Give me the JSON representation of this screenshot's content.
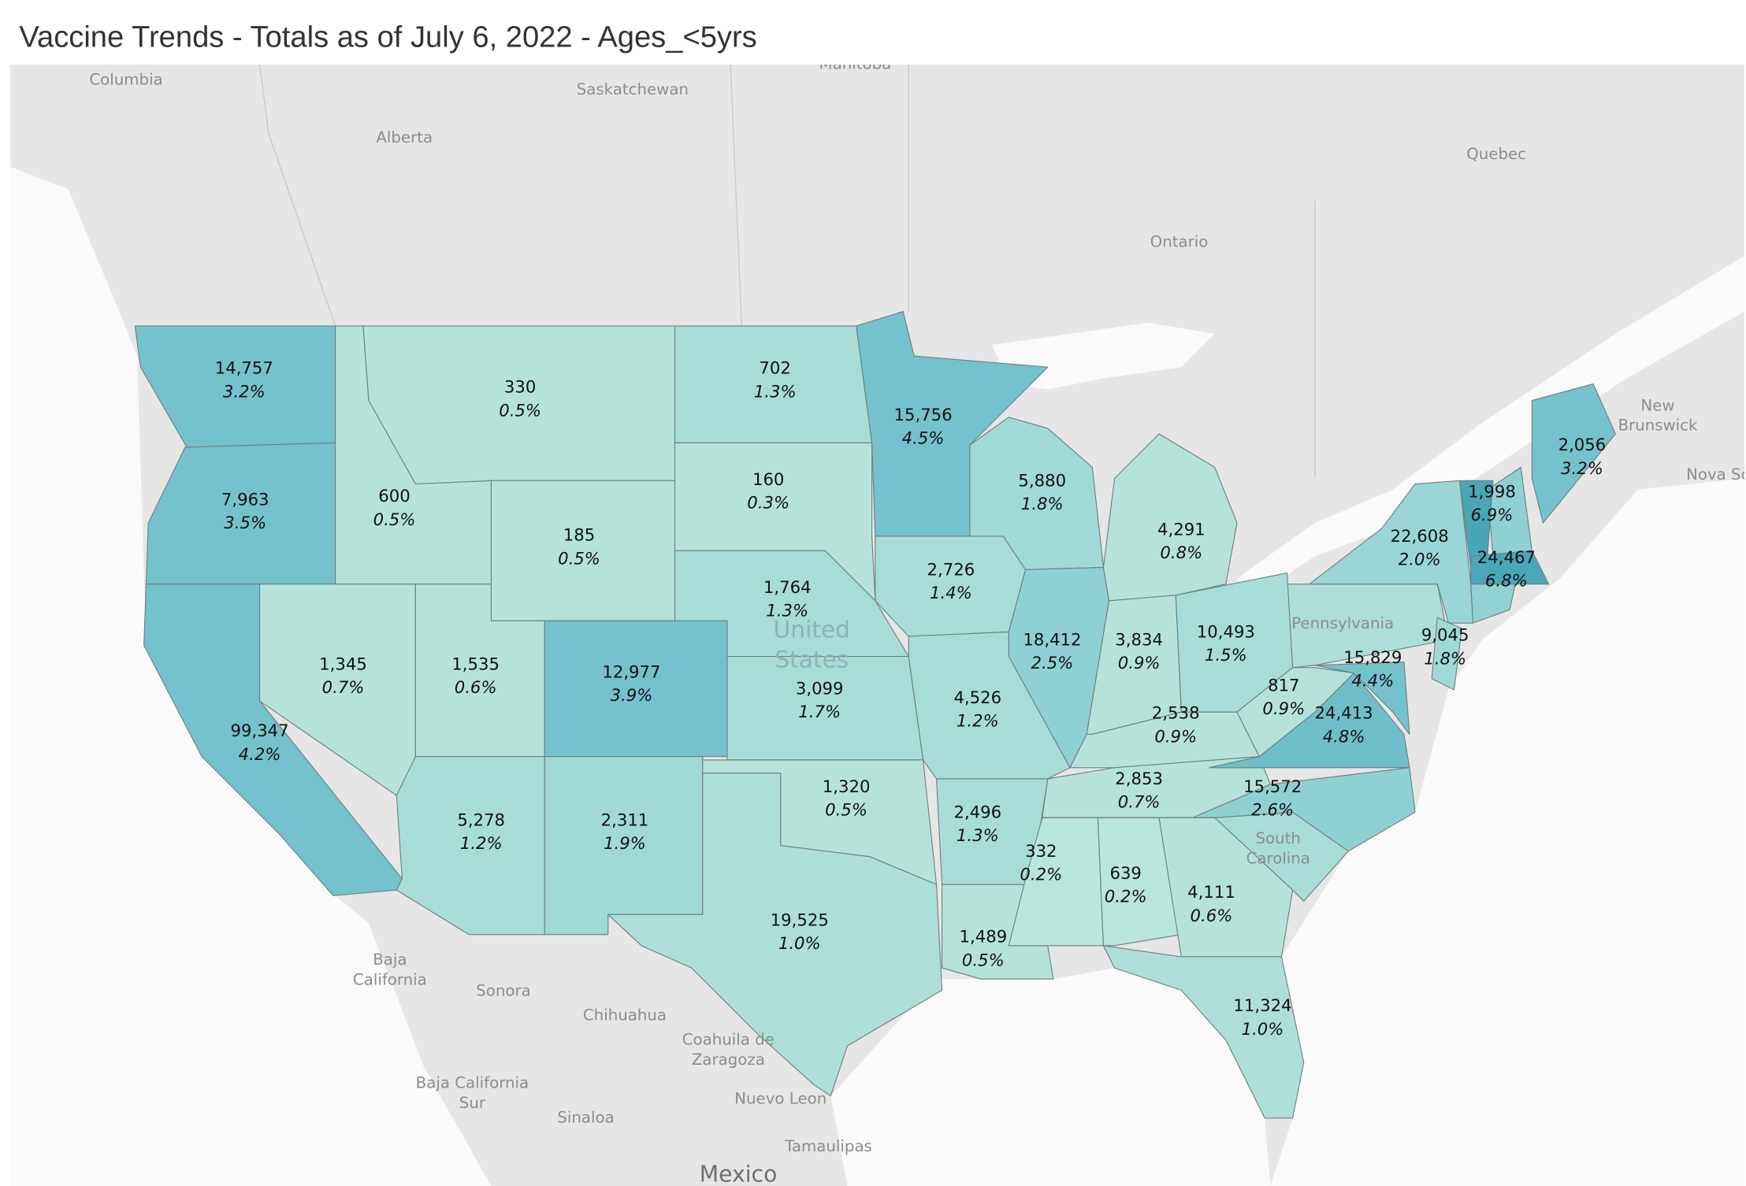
{
  "map": {
    "title": "Vaccine Trends - Totals as of July 6, 2022 - Ages_<5yrs",
    "regions": [
      {
        "count": "14,757",
        "pct": "3.2%",
        "color": "#74c2cd"
      },
      {
        "count": "7,963",
        "pct": "3.5%",
        "color": "#74c2cd"
      },
      {
        "count": "99,347",
        "pct": "4.2%",
        "color": "#74c2cd"
      },
      {
        "count": "600",
        "pct": "0.5%",
        "color": "#b5e3da"
      },
      {
        "count": "330",
        "pct": "0.5%",
        "color": "#b5e3da"
      },
      {
        "count": "185",
        "pct": "0.5%",
        "color": "#b5e3da"
      },
      {
        "count": "1,345",
        "pct": "0.7%",
        "color": "#b5e3da"
      },
      {
        "count": "1,535",
        "pct": "0.6%",
        "color": "#b5e3da"
      },
      {
        "count": "12,977",
        "pct": "3.9%",
        "color": "#74c2cd"
      },
      {
        "count": "5,278",
        "pct": "1.2%",
        "color": "#a8ddd7"
      },
      {
        "count": "2,311",
        "pct": "1.9%",
        "color": "#a0d9d6"
      },
      {
        "count": "702",
        "pct": "1.3%",
        "color": "#a8ddd7"
      },
      {
        "count": "160",
        "pct": "0.3%",
        "color": "#b5e3da"
      },
      {
        "count": "1,764",
        "pct": "1.3%",
        "color": "#a8ddd7"
      },
      {
        "count": "3,099",
        "pct": "1.7%",
        "color": "#a8ddd7"
      },
      {
        "count": "1,320",
        "pct": "0.5%",
        "color": "#b5e3da"
      },
      {
        "count": "19,525",
        "pct": "1.0%",
        "color": "#addfd8"
      },
      {
        "count": "15,756",
        "pct": "4.5%",
        "color": "#74c2cd"
      },
      {
        "count": "2,726",
        "pct": "1.4%",
        "color": "#a8ddd7"
      },
      {
        "count": "4,526",
        "pct": "1.2%",
        "color": "#a8ddd7"
      },
      {
        "count": "2,496",
        "pct": "1.3%",
        "color": "#a8ddd7"
      },
      {
        "count": "1,489",
        "pct": "0.5%",
        "color": "#b5e3da"
      },
      {
        "count": "5,880",
        "pct": "1.8%",
        "color": "#a0d9d6"
      },
      {
        "count": "18,412",
        "pct": "2.5%",
        "color": "#8fd0d3"
      },
      {
        "count": "4,291",
        "pct": "0.8%",
        "color": "#b5e3da"
      },
      {
        "count": "3,834",
        "pct": "0.9%",
        "color": "#b5e3da"
      },
      {
        "count": "10,493",
        "pct": "1.5%",
        "color": "#a8ddd7"
      },
      {
        "count": "2,538",
        "pct": "0.9%",
        "color": "#b5e3da"
      },
      {
        "count": "2,853",
        "pct": "0.7%",
        "color": "#b5e3da"
      },
      {
        "count": "332",
        "pct": "0.2%",
        "color": "#b8e5dc"
      },
      {
        "count": "639",
        "pct": "0.2%",
        "color": "#b8e5dc"
      },
      {
        "count": "4,111",
        "pct": "0.6%",
        "color": "#b5e3da"
      },
      {
        "count": "11,324",
        "pct": "1.0%",
        "color": "#addfd8"
      },
      {
        "count": "15,572",
        "pct": "2.6%",
        "color": "#8fd0d3"
      },
      {
        "count": "24,413",
        "pct": "4.8%",
        "color": "#6fbfcb"
      },
      {
        "count": "817",
        "pct": "0.9%",
        "color": "#b5e3da"
      },
      {
        "count": "22,608",
        "pct": "2.0%",
        "color": "#9ad6d5"
      },
      {
        "count": "15,829",
        "pct": "4.4%",
        "color": "#74c2cd"
      },
      {
        "count": "9,045",
        "pct": "1.8%",
        "color": "#a0d9d6"
      },
      {
        "count": "1,998",
        "pct": "6.9%",
        "color": "#49a6b6"
      },
      {
        "count": "24,467",
        "pct": "6.8%",
        "color": "#4aa7b7"
      },
      {
        "count": "2,056",
        "pct": "3.2%",
        "color": "#74c2cd"
      }
    ],
    "basemap_labels": [
      {
        "lines": [
          "Columbia"
        ]
      },
      {
        "lines": [
          "Manitoba"
        ]
      },
      {
        "lines": [
          "Saskatchewan"
        ]
      },
      {
        "lines": [
          "Alberta"
        ]
      },
      {
        "lines": [
          "Quebec"
        ]
      },
      {
        "lines": [
          "Ontario"
        ]
      },
      {
        "lines": [
          "New",
          "Brunswick"
        ]
      },
      {
        "lines": [
          "Nova Sc"
        ]
      },
      {
        "lines": [
          "Baja",
          "California"
        ]
      },
      {
        "lines": [
          "Sonora"
        ]
      },
      {
        "lines": [
          "Chihuahua"
        ]
      },
      {
        "lines": [
          "Coahuila de",
          "Zaragoza"
        ]
      },
      {
        "lines": [
          "Baja California",
          "Sur"
        ]
      },
      {
        "lines": [
          "Nuevo Leon"
        ]
      },
      {
        "lines": [
          "Sinaloa"
        ]
      },
      {
        "lines": [
          "Tamaulipas"
        ]
      },
      {
        "lines": [
          "Mexico"
        ]
      },
      {
        "lines": [
          "United",
          "States"
        ]
      },
      {
        "lines": [
          "Pennsylvania"
        ]
      },
      {
        "lines": [
          "South",
          "Carolina"
        ]
      }
    ]
  }
}
